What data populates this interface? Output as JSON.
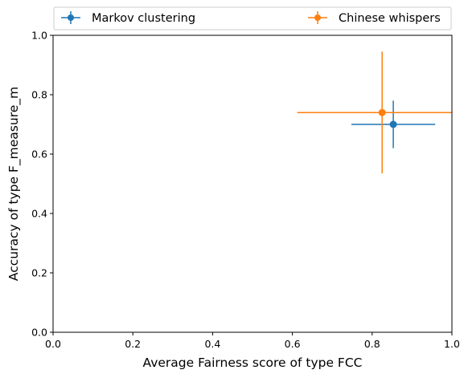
{
  "chart_data": {
    "type": "scatter",
    "xlabel": "Average Fairness score of type FCC",
    "ylabel": "Accuracy of type F_measure_m",
    "xlim": [
      0.0,
      1.0
    ],
    "ylim": [
      0.0,
      1.0
    ],
    "x_ticks": [
      "0.0",
      "0.2",
      "0.4",
      "0.6",
      "0.8",
      "1.0"
    ],
    "y_ticks": [
      "0.0",
      "0.2",
      "0.4",
      "0.6",
      "0.8",
      "1.0"
    ],
    "grid": false,
    "legend_position": "top, above plot",
    "series": [
      {
        "name": "Markov clustering",
        "color": "#1f77b4",
        "x": 0.853,
        "y": 0.7,
        "x_err": 0.105,
        "y_err": 0.08
      },
      {
        "name": "Chinese whispers",
        "color": "#ff7f0e",
        "x": 0.825,
        "y": 0.74,
        "x_err": 0.213,
        "y_err": 0.205
      }
    ]
  }
}
